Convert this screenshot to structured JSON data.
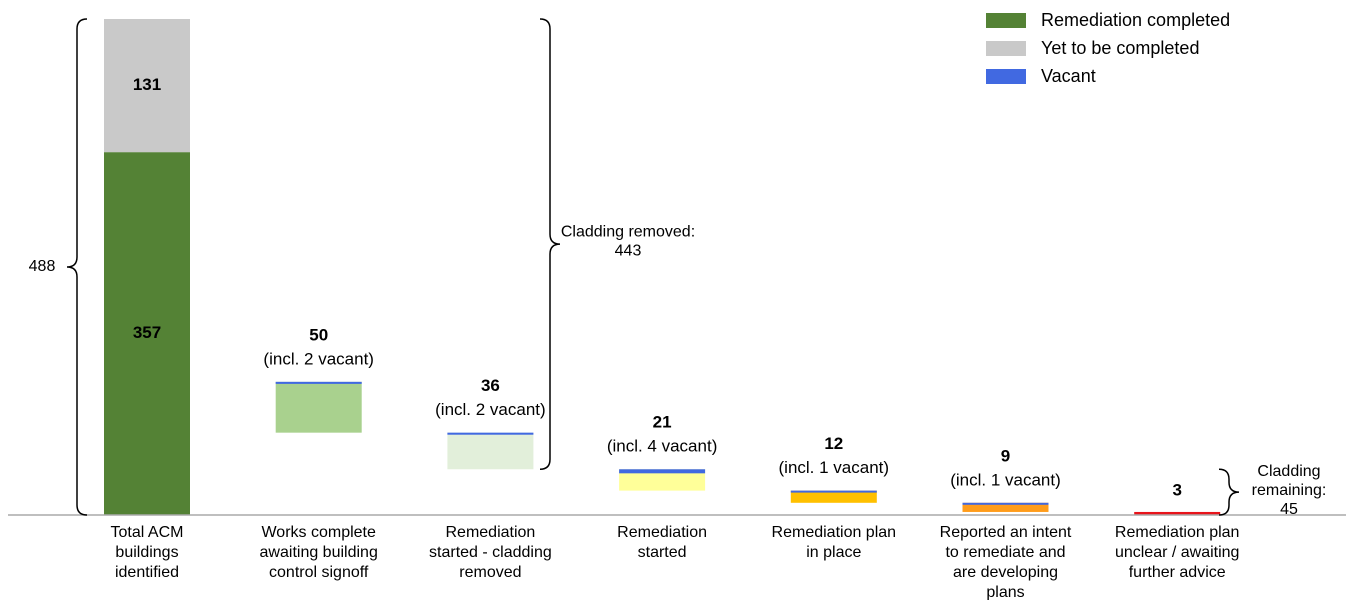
{
  "chart_data": {
    "type": "waterfall",
    "ylim": [
      0,
      488
    ],
    "total": {
      "category": [
        "Total ACM",
        "buildings",
        "identified"
      ],
      "value": 488,
      "segments": [
        {
          "name": "Remediation completed",
          "value": 357,
          "color": "#548235"
        },
        {
          "name": "Yet to be completed",
          "value": 131,
          "color": "#c9c9c9"
        }
      ]
    },
    "vacant_color": "#4169e1",
    "vacant_name": "Vacant",
    "steps": [
      {
        "category": [
          "Works complete",
          "awaiting building",
          "control signoff"
        ],
        "value": 50,
        "vacant": 2,
        "vacant_label": "(incl. 2 vacant)",
        "color": "#a9d18e"
      },
      {
        "category": [
          "Remediation",
          "started - cladding",
          "removed"
        ],
        "value": 36,
        "vacant": 2,
        "vacant_label": "(incl. 2 vacant)",
        "color": "#e2efda"
      },
      {
        "category": [
          "Remediation",
          "started"
        ],
        "value": 21,
        "vacant": 4,
        "vacant_label": "(incl. 4 vacant)",
        "color": "#ffff99"
      },
      {
        "category": [
          "Remediation plan",
          "in place"
        ],
        "value": 12,
        "vacant": 1,
        "vacant_label": "(incl. 1 vacant)",
        "color": "#ffc000"
      },
      {
        "category": [
          "Reported an intent",
          "to remediate and",
          "are developing",
          "plans"
        ],
        "value": 9,
        "vacant": 1,
        "vacant_label": "(incl. 1 vacant)",
        "color": "#ff9c1a"
      },
      {
        "category": [
          "Remediation plan",
          "unclear / awaiting",
          "further advice"
        ],
        "value": 3,
        "color": "#e8141b"
      }
    ],
    "cladding_removed": {
      "label": [
        "Cladding removed:",
        "443"
      ],
      "value": 443
    },
    "cladding_remaining": {
      "label": [
        "Cladding",
        "remaining:",
        "45"
      ],
      "value": 45
    }
  }
}
